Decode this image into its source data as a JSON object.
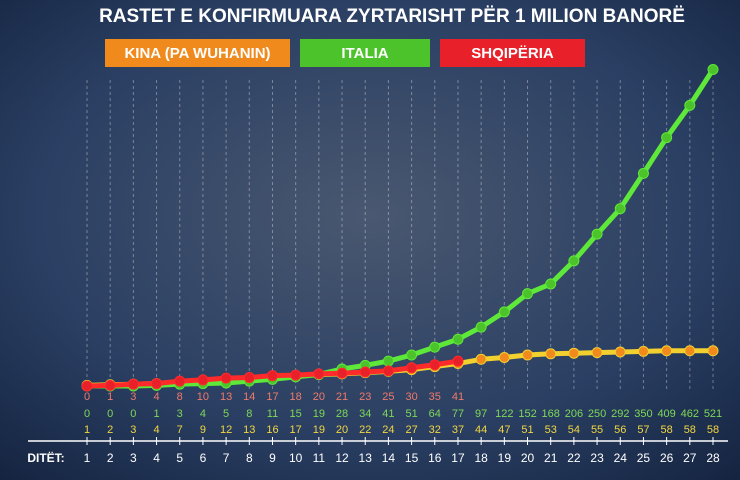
{
  "chart_data": {
    "type": "line",
    "title": "RASTET E KONFIRMUARA ZYRTARISHT PËR 1 MILION BANORË",
    "x_label": "DITËT:",
    "categories": [
      1,
      2,
      3,
      4,
      5,
      6,
      7,
      8,
      9,
      10,
      11,
      12,
      13,
      14,
      15,
      16,
      17,
      18,
      19,
      20,
      21,
      22,
      23,
      24,
      25,
      26,
      27,
      28
    ],
    "ylim": [
      0,
      540
    ],
    "series": [
      {
        "name": "KINA (PA WUHANIN)",
        "color": "#f08a1c",
        "values": [
          1,
          2,
          3,
          4,
          7,
          9,
          12,
          13,
          16,
          17,
          19,
          20,
          22,
          24,
          27,
          32,
          37,
          44,
          47,
          51,
          53,
          54,
          55,
          56,
          57,
          58,
          58,
          58
        ]
      },
      {
        "name": "ITALIA",
        "color": "#4cc32b",
        "values": [
          0,
          0,
          0,
          1,
          3,
          4,
          5,
          8,
          11,
          15,
          19,
          28,
          34,
          41,
          51,
          64,
          77,
          97,
          122,
          152,
          168,
          206,
          250,
          292,
          350,
          409,
          462,
          521
        ]
      },
      {
        "name": "SHQIPËRIA",
        "color": "#e8202a",
        "values": [
          0,
          1,
          3,
          4,
          8,
          10,
          13,
          14,
          17,
          18,
          20,
          21,
          23,
          25,
          30,
          35,
          41,
          null,
          null,
          null,
          null,
          null,
          null,
          null,
          null,
          null,
          null,
          null
        ]
      }
    ]
  }
}
